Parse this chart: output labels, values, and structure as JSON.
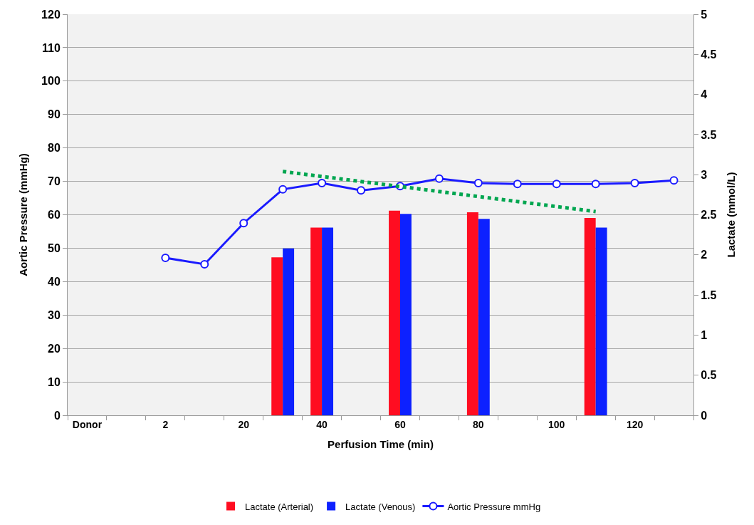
{
  "chart_data": {
    "type": "bar",
    "xlabel": "Perfusion Time (min)",
    "ylabel": "Aortic Pressure (mmHg)",
    "y2label": "Lactate (mmol/L)",
    "categories": [
      "Donor",
      null,
      "2",
      null,
      "20",
      null,
      "40",
      null,
      "60",
      null,
      "80",
      null,
      "100",
      null,
      "120",
      null
    ],
    "ylim": [
      0,
      120
    ],
    "yticks": [
      0,
      10,
      20,
      30,
      40,
      50,
      60,
      70,
      80,
      90,
      100,
      110,
      120
    ],
    "y2lim": [
      0,
      5
    ],
    "y2ticks": [
      0,
      0.5,
      1,
      1.5,
      2,
      2.5,
      3,
      3.5,
      4,
      4.5,
      5
    ],
    "grid": "y",
    "legend": "bottom",
    "series": [
      {
        "name": "Lactate (Arterial)",
        "axis": "y2",
        "color": "#ff0d21",
        "values": [
          null,
          null,
          null,
          null,
          null,
          1.97,
          2.34,
          null,
          2.55,
          null,
          2.53,
          null,
          null,
          2.46,
          null,
          null
        ]
      },
      {
        "name": "Lactate (Venous)",
        "axis": "y2",
        "color": "#0d21ff",
        "values": [
          null,
          null,
          null,
          null,
          null,
          2.08,
          2.34,
          null,
          2.51,
          null,
          2.45,
          null,
          null,
          2.34,
          null,
          null
        ]
      },
      {
        "name": "Aortic Pressure mmHg",
        "type": "line",
        "axis": "y",
        "color": "#1a1aff",
        "marker": "circle",
        "line_style": "solid",
        "values": [
          null,
          null,
          47.1,
          45.2,
          57.5,
          67.6,
          69.5,
          67.3,
          68.6,
          70.8,
          69.5,
          69.2,
          69.2,
          69.2,
          69.5,
          70.3
        ]
      },
      {
        "type": "line",
        "axis": "y2",
        "color": "#00a650",
        "marker": "none",
        "line_style": "dotted",
        "values": [
          null,
          null,
          null,
          null,
          null,
          3.04,
          null,
          null,
          null,
          null,
          null,
          null,
          null,
          2.54,
          null,
          null
        ]
      }
    ]
  }
}
